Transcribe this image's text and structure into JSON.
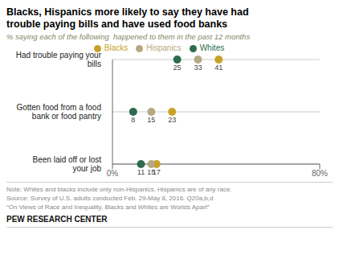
{
  "chart_data": {
    "type": "dot",
    "orientation": "horizontal",
    "title": "Blacks, Hispanics more likely to say they have had\ntrouble paying bills and have used food banks",
    "subtitle": "% saying each of the following  happened to them in the past 12 months",
    "categories": [
      "Had trouble paying your\nbills",
      "Gotten food from a food\nbank or food pantry",
      "Been laid off or lost\nyour job"
    ],
    "series": [
      {
        "name": "Whites",
        "color": "#2e6b4f",
        "values": [
          25,
          8,
          11
        ]
      },
      {
        "name": "Blacks",
        "color": "#c8a227",
        "values": [
          41,
          23,
          17
        ]
      },
      {
        "name": "Hispanics",
        "color": "#b5a882",
        "values": [
          33,
          15,
          15
        ]
      }
    ],
    "xlim": [
      0,
      80
    ],
    "xticks": [
      {
        "value": 0,
        "label": "0%"
      },
      {
        "value": 80,
        "label": "80%"
      }
    ],
    "grid": true,
    "legend": "top",
    "data_labels": true,
    "notes": [
      "Note: Whites and blacks include only non-Hispanics. Hispanics are of any race.",
      "Source: Survey of U.S. adults conducted Feb. 29-May 8, 2016. Q20a,b,d",
      "“On Views of Race and Inequality, Blacks and Whites are Worlds Apart”"
    ],
    "footer": "PEW RESEARCH CENTER"
  }
}
